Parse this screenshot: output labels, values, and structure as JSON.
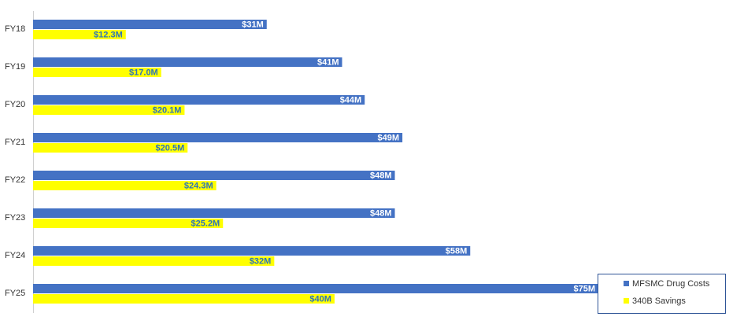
{
  "chart_data": {
    "type": "bar",
    "orientation": "horizontal",
    "categories": [
      "FY18",
      "FY19",
      "FY20",
      "FY21",
      "FY22",
      "FY23",
      "FY24",
      "FY25"
    ],
    "series": [
      {
        "name": "MFSMC Drug Costs",
        "color": "#4472c4",
        "values": [
          31,
          41,
          44,
          49,
          48,
          48,
          58,
          75
        ],
        "value_labels": [
          "$31M",
          "$41M",
          "$44M",
          "$49M",
          "$48M",
          "$48M",
          "$58M",
          "$75M"
        ]
      },
      {
        "name": "340B Savings",
        "color": "#ffff00",
        "values": [
          12.3,
          17.0,
          20.1,
          20.5,
          24.3,
          25.2,
          32,
          40
        ],
        "value_labels": [
          "$12.3M",
          "$17.0M",
          "$20.1M",
          "$20.5M",
          "$24.3M",
          "$25.2M",
          "$32M",
          "$40M"
        ]
      }
    ],
    "legend": "bottom-right"
  }
}
